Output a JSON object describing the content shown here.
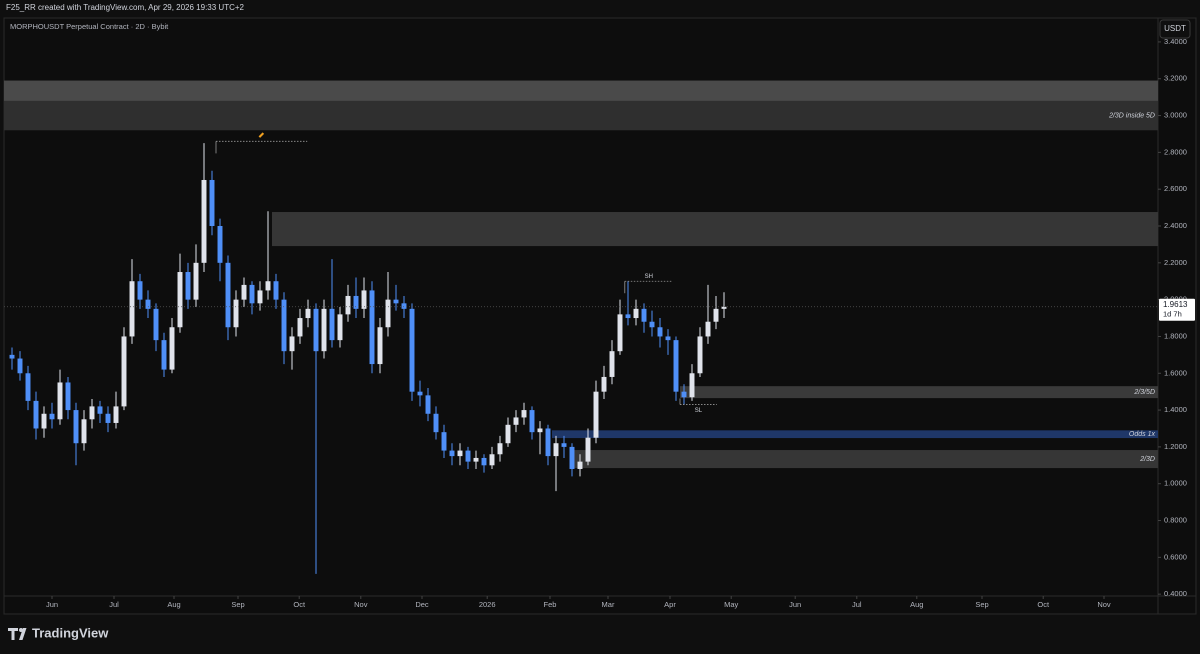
{
  "header": {
    "credit": "F25_RR created with TradingView.com, Apr 29, 2026 19:33 UTC+2",
    "brand": "TradingView"
  },
  "chart_data": {
    "type": "candlestick",
    "title": "MORPHOUSDT Perpetual Contract · 2D · Bybit",
    "currency": "USDT",
    "up_color": "#e0e3eb",
    "down_color": "#4f8ff7",
    "grid": false,
    "xlim": [
      -1,
      143.25
    ],
    "ylim": [
      0.39,
      3.53
    ],
    "xticks": [
      {
        "value": 5,
        "label": "Jun"
      },
      {
        "value": 12.75,
        "label": "Jul"
      },
      {
        "value": 20.25,
        "label": "Aug"
      },
      {
        "value": 28.25,
        "label": "Sep"
      },
      {
        "value": 35.9,
        "label": "Oct"
      },
      {
        "value": 43.6,
        "label": "Nov"
      },
      {
        "value": 51.25,
        "label": "Dec"
      },
      {
        "value": 59.4,
        "label": "2026"
      },
      {
        "value": 67.25,
        "label": "Feb"
      },
      {
        "value": 74.5,
        "label": "Mar"
      },
      {
        "value": 82.25,
        "label": "Apr"
      },
      {
        "value": 89.9,
        "label": "May"
      },
      {
        "value": 97.9,
        "label": "Jun"
      },
      {
        "value": 105.6,
        "label": "Jul"
      },
      {
        "value": 113.1,
        "label": "Aug"
      },
      {
        "value": 121.25,
        "label": "Sep"
      },
      {
        "value": 128.9,
        "label": "Oct"
      },
      {
        "value": 136.5,
        "label": "Nov"
      }
    ],
    "yticks": [
      {
        "value": 0.4,
        "label": "0.4000"
      },
      {
        "value": 0.6,
        "label": "0.6000"
      },
      {
        "value": 0.8,
        "label": "0.8000"
      },
      {
        "value": 1.0,
        "label": "1.0000"
      },
      {
        "value": 1.2,
        "label": "1.2000"
      },
      {
        "value": 1.4,
        "label": "1.4000"
      },
      {
        "value": 1.6,
        "label": "1.6000"
      },
      {
        "value": 1.8,
        "label": "1.8000"
      },
      {
        "value": 2.0,
        "label": "2.0000"
      },
      {
        "value": 2.2,
        "label": "2.2000"
      },
      {
        "value": 2.4,
        "label": "2.4000"
      },
      {
        "value": 2.6,
        "label": "2.6000"
      },
      {
        "value": 2.8,
        "label": "2.8000"
      },
      {
        "value": 3.0,
        "label": "3.0000"
      },
      {
        "value": 3.2,
        "label": "3.2000"
      },
      {
        "value": 3.4,
        "label": "3.4000"
      }
    ],
    "ohlc": [
      [
        1.7,
        1.74,
        1.62,
        1.68
      ],
      [
        1.68,
        1.72,
        1.56,
        1.6
      ],
      [
        1.6,
        1.64,
        1.4,
        1.45
      ],
      [
        1.45,
        1.5,
        1.24,
        1.3
      ],
      [
        1.3,
        1.42,
        1.25,
        1.38
      ],
      [
        1.38,
        1.44,
        1.3,
        1.35
      ],
      [
        1.35,
        1.62,
        1.32,
        1.55
      ],
      [
        1.55,
        1.58,
        1.35,
        1.4
      ],
      [
        1.4,
        1.44,
        1.1,
        1.22
      ],
      [
        1.22,
        1.4,
        1.18,
        1.35
      ],
      [
        1.35,
        1.46,
        1.3,
        1.42
      ],
      [
        1.42,
        1.45,
        1.33,
        1.38
      ],
      [
        1.38,
        1.42,
        1.28,
        1.33
      ],
      [
        1.33,
        1.5,
        1.3,
        1.42
      ],
      [
        1.42,
        1.85,
        1.4,
        1.8
      ],
      [
        1.8,
        2.22,
        1.76,
        2.1
      ],
      [
        2.1,
        2.14,
        1.95,
        2.0
      ],
      [
        2.0,
        2.05,
        1.9,
        1.95
      ],
      [
        1.95,
        1.98,
        1.72,
        1.78
      ],
      [
        1.78,
        1.82,
        1.58,
        1.62
      ],
      [
        1.62,
        1.9,
        1.6,
        1.85
      ],
      [
        1.85,
        2.25,
        1.82,
        2.15
      ],
      [
        2.15,
        2.2,
        1.95,
        2.0
      ],
      [
        2.0,
        2.3,
        1.96,
        2.2
      ],
      [
        2.2,
        2.85,
        2.15,
        2.65
      ],
      [
        2.65,
        2.7,
        2.35,
        2.4
      ],
      [
        2.4,
        2.44,
        2.1,
        2.2
      ],
      [
        2.2,
        2.24,
        1.78,
        1.85
      ],
      [
        1.85,
        2.05,
        1.8,
        2.0
      ],
      [
        2.0,
        2.12,
        1.96,
        2.08
      ],
      [
        2.08,
        2.1,
        1.92,
        1.98
      ],
      [
        1.98,
        2.1,
        1.94,
        2.05
      ],
      [
        2.05,
        2.48,
        2.0,
        2.1
      ],
      [
        2.1,
        2.14,
        1.95,
        2.0
      ],
      [
        2.0,
        2.04,
        1.65,
        1.72
      ],
      [
        1.72,
        1.85,
        1.62,
        1.8
      ],
      [
        1.8,
        1.95,
        1.76,
        1.9
      ],
      [
        1.9,
        2.0,
        1.85,
        1.95
      ],
      [
        1.95,
        1.98,
        0.51,
        1.72
      ],
      [
        1.72,
        2.0,
        1.68,
        1.95
      ],
      [
        1.95,
        2.22,
        1.74,
        1.78
      ],
      [
        1.78,
        1.96,
        1.74,
        1.92
      ],
      [
        1.92,
        2.08,
        1.88,
        2.02
      ],
      [
        2.02,
        2.12,
        1.9,
        1.95
      ],
      [
        1.95,
        2.12,
        1.9,
        2.05
      ],
      [
        2.05,
        2.1,
        1.6,
        1.65
      ],
      [
        1.65,
        1.9,
        1.6,
        1.85
      ],
      [
        1.85,
        2.15,
        1.8,
        2.0
      ],
      [
        2.0,
        2.08,
        1.94,
        1.98
      ],
      [
        1.98,
        2.02,
        1.9,
        1.95
      ],
      [
        1.95,
        1.98,
        1.45,
        1.5
      ],
      [
        1.5,
        1.56,
        1.42,
        1.48
      ],
      [
        1.48,
        1.52,
        1.34,
        1.38
      ],
      [
        1.38,
        1.42,
        1.24,
        1.28
      ],
      [
        1.28,
        1.32,
        1.14,
        1.18
      ],
      [
        1.18,
        1.22,
        1.1,
        1.15
      ],
      [
        1.15,
        1.22,
        1.1,
        1.18
      ],
      [
        1.18,
        1.2,
        1.08,
        1.12
      ],
      [
        1.12,
        1.18,
        1.08,
        1.14
      ],
      [
        1.14,
        1.16,
        1.06,
        1.1
      ],
      [
        1.1,
        1.2,
        1.08,
        1.16
      ],
      [
        1.16,
        1.26,
        1.12,
        1.22
      ],
      [
        1.22,
        1.36,
        1.2,
        1.32
      ],
      [
        1.32,
        1.4,
        1.28,
        1.36
      ],
      [
        1.36,
        1.44,
        1.32,
        1.4
      ],
      [
        1.4,
        1.42,
        1.24,
        1.28
      ],
      [
        1.28,
        1.34,
        1.16,
        1.3
      ],
      [
        1.3,
        1.32,
        1.1,
        1.15
      ],
      [
        1.15,
        1.26,
        0.96,
        1.22
      ],
      [
        1.22,
        1.26,
        1.14,
        1.2
      ],
      [
        1.2,
        1.22,
        1.04,
        1.08
      ],
      [
        1.08,
        1.16,
        1.04,
        1.12
      ],
      [
        1.12,
        1.3,
        1.1,
        1.25
      ],
      [
        1.25,
        1.56,
        1.22,
        1.5
      ],
      [
        1.5,
        1.64,
        1.46,
        1.58
      ],
      [
        1.58,
        1.78,
        1.54,
        1.72
      ],
      [
        1.72,
        2.0,
        1.7,
        1.92
      ],
      [
        1.92,
        2.1,
        1.86,
        1.9
      ],
      [
        1.9,
        2.0,
        1.86,
        1.95
      ],
      [
        1.95,
        1.98,
        1.82,
        1.88
      ],
      [
        1.88,
        1.94,
        1.8,
        1.85
      ],
      [
        1.85,
        1.9,
        1.74,
        1.8
      ],
      [
        1.8,
        1.84,
        1.7,
        1.78
      ],
      [
        1.78,
        1.8,
        1.45,
        1.5
      ],
      [
        1.5,
        1.54,
        1.43,
        1.47
      ],
      [
        1.47,
        1.65,
        1.45,
        1.6
      ],
      [
        1.6,
        1.85,
        1.58,
        1.8
      ],
      [
        1.8,
        2.08,
        1.76,
        1.88
      ],
      [
        1.88,
        2.02,
        1.84,
        1.95
      ],
      [
        1.95,
        2.04,
        1.9,
        1.9613
      ]
    ],
    "zones": [
      {
        "label": "2/3D inside 5D",
        "range": [
          2.92,
          3.19
        ],
        "from": -1,
        "color": "#2f2f2f"
      },
      {
        "range": [
          3.08,
          3.19
        ],
        "from": -1,
        "color": "#4a4a4a"
      },
      {
        "range": [
          2.291,
          2.476
        ],
        "from": 32.5,
        "color": "#363636"
      },
      {
        "label": "2/3/5D",
        "range": [
          1.465,
          1.53
        ],
        "from": 83.5,
        "color": "#3a3a3a"
      },
      {
        "label": "Odds 1x",
        "range": [
          1.248,
          1.29
        ],
        "from": 67.5,
        "color": "#1f3768"
      },
      {
        "label": "2/3D",
        "range": [
          1.085,
          1.183
        ],
        "from": 69.75,
        "color": "#363636"
      }
    ],
    "levels": [
      {
        "label": "SH",
        "price": 2.1,
        "from": 76.6,
        "to": 82.6
      },
      {
        "label": "SL",
        "price": 1.43,
        "from": 83.5,
        "to": 88.1
      },
      {
        "price": 2.86,
        "from": 25.5,
        "to": 36.9
      }
    ],
    "last_price": 1.9613,
    "countdown": "1d 7h"
  }
}
